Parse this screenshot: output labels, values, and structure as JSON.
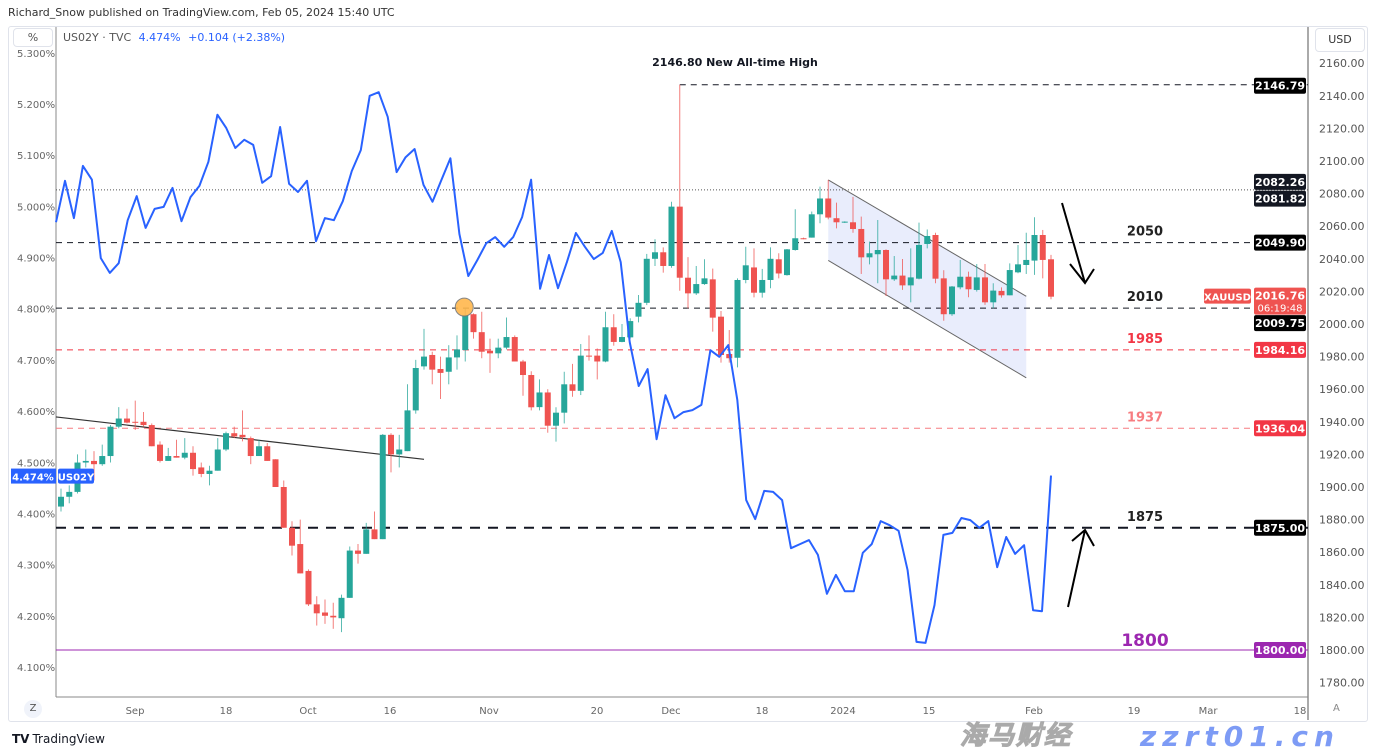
{
  "header": {
    "publisher": "Richard_Snow published on TradingView.com, Feb 05, 2024 15:40 UTC",
    "left_scale_button": "%",
    "right_scale_button": "USD",
    "legend_symbol": "US02Y · TVC",
    "legend_value": "4.474%",
    "legend_change": "+0.104 (+2.38%)"
  },
  "footer": {
    "logo_text": "TradingView",
    "logo_mark": "TV",
    "z_button": "Z",
    "a_button": "A"
  },
  "watermark": {
    "cn": "海马财经",
    "en": "zzrt01.cn"
  },
  "colors": {
    "up": "#26a69a",
    "down": "#ef5350",
    "yield_line": "#2962ff",
    "support_1800": "#9c27b0",
    "red_level": "#f23645",
    "channel_fill": "#e3e8fb"
  },
  "chart_data": {
    "type": "candlestick+line",
    "instrument_right": "XAUUSD",
    "instrument_left": "US02Y",
    "y_right": {
      "unit": "USD",
      "range": [
        1773,
        2180
      ],
      "ticks": [
        2160,
        2140,
        2120,
        2100,
        2080,
        2060,
        2040,
        2020,
        2000,
        1980,
        1960,
        1940,
        1920,
        1900,
        1880,
        1860,
        1840,
        1820,
        1800,
        1780
      ]
    },
    "y_left": {
      "unit": "%",
      "range": [
        4.06,
        5.35
      ],
      "ticks": [
        "5.300%",
        "5.200%",
        "5.100%",
        "5.000%",
        "4.900%",
        "4.800%",
        "4.700%",
        "4.600%",
        "4.500%",
        "4.400%",
        "4.300%",
        "4.200%",
        "4.100%"
      ]
    },
    "x_ticks": [
      "Sep",
      "18",
      "Oct",
      "16",
      "Nov",
      "20",
      "Dec",
      "18",
      "2024",
      "15",
      "Feb",
      "19",
      "Mar",
      "18"
    ],
    "candles_ohlc": [
      [
        1888,
        1899,
        1885,
        1894
      ],
      [
        1894,
        1901,
        1890,
        1897
      ],
      [
        1897,
        1920,
        1896,
        1915
      ],
      [
        1915,
        1923,
        1912,
        1916
      ],
      [
        1916,
        1922,
        1904,
        1914
      ],
      [
        1914,
        1926,
        1913,
        1919
      ],
      [
        1919,
        1938,
        1915,
        1937
      ],
      [
        1937,
        1949,
        1936,
        1942
      ],
      [
        1942,
        1948,
        1939,
        1939.5
      ],
      [
        1940,
        1953,
        1935,
        1939.5
      ],
      [
        1940,
        1946,
        1937,
        1938
      ],
      [
        1938,
        1939,
        1925,
        1925
      ],
      [
        1926,
        1928,
        1915,
        1916
      ],
      [
        1916,
        1924,
        1916,
        1919
      ],
      [
        1919,
        1929,
        1918,
        1918
      ],
      [
        1918,
        1930,
        1917,
        1921
      ],
      [
        1921,
        1925,
        1907,
        1911
      ],
      [
        1912,
        1915,
        1906,
        1908
      ],
      [
        1908,
        1913,
        1901,
        1910
      ],
      [
        1910,
        1930,
        1910,
        1923
      ],
      [
        1923,
        1934,
        1922,
        1933
      ],
      [
        1933,
        1937,
        1930,
        1931
      ],
      [
        1932,
        1947,
        1928,
        1930.5
      ],
      [
        1930,
        1931,
        1914,
        1919
      ],
      [
        1919,
        1929,
        1919,
        1925
      ],
      [
        1925,
        1927,
        1916,
        1916
      ],
      [
        1917,
        1917,
        1900,
        1900
      ],
      [
        1900,
        1904,
        1875,
        1875
      ],
      [
        1875,
        1879,
        1858,
        1864
      ],
      [
        1865,
        1880,
        1847,
        1847
      ],
      [
        1848.5,
        1849.5,
        1827,
        1828
      ],
      [
        1828,
        1833,
        1815,
        1822.5
      ],
      [
        1823,
        1831,
        1816,
        1821
      ],
      [
        1821,
        1829,
        1813,
        1820
      ],
      [
        1819.5,
        1834,
        1811,
        1832
      ],
      [
        1832,
        1863.5,
        1832,
        1861
      ],
      [
        1861,
        1865,
        1853,
        1859
      ],
      [
        1859,
        1878,
        1859,
        1874
      ],
      [
        1874,
        1885,
        1868,
        1868
      ],
      [
        1868,
        1932.5,
        1868,
        1932
      ],
      [
        1932,
        1933,
        1909,
        1920
      ],
      [
        1920,
        1932,
        1912,
        1923
      ],
      [
        1922,
        1963,
        1922,
        1947
      ],
      [
        1947,
        1978,
        1945,
        1973
      ],
      [
        1974,
        1997,
        1972,
        1980
      ],
      [
        1981,
        1983,
        1963,
        1972
      ],
      [
        1972.4,
        1980,
        1954,
        1970
      ],
      [
        1970.7,
        1987,
        1963,
        1979.5
      ],
      [
        1979.5,
        1993,
        1972,
        1984.4
      ],
      [
        1984,
        2009.6,
        1977,
        2005.5
      ],
      [
        2006,
        2006.5,
        1991,
        1995
      ],
      [
        1995,
        2007.5,
        1979,
        1983
      ],
      [
        1983.6,
        1991,
        1970,
        1982
      ],
      [
        1982,
        1991,
        1979,
        1985.5
      ],
      [
        1985.5,
        2004,
        1984.4,
        1992
      ],
      [
        1992,
        1993,
        1977,
        1977
      ],
      [
        1977,
        1978,
        1956,
        1968.7
      ],
      [
        1968.7,
        1971,
        1947,
        1948.9
      ],
      [
        1949,
        1966,
        1947,
        1958
      ],
      [
        1958,
        1960,
        1933.3,
        1937.6
      ],
      [
        1937.6,
        1948.9,
        1927.8,
        1945.6
      ],
      [
        1945.6,
        1970.7,
        1939,
        1963
      ],
      [
        1963,
        1975.5,
        1955.4,
        1959
      ],
      [
        1959,
        1987.7,
        1956.4,
        1980.6
      ],
      [
        1980.6,
        1993,
        1977.5,
        1980
      ],
      [
        1980.6,
        1985,
        1966,
        1977
      ],
      [
        1977,
        2007.5,
        1976.5,
        1998
      ],
      [
        1998,
        2006,
        1986.7,
        1989
      ],
      [
        1989,
        2000,
        1988.8,
        1992
      ],
      [
        1991.8,
        2003.5,
        1991,
        2001.8
      ],
      [
        2004.5,
        2017.8,
        2001,
        2013
      ],
      [
        2013,
        2043,
        2011.6,
        2040
      ],
      [
        2040,
        2052,
        2035.6,
        2044
      ],
      [
        2044,
        2047,
        2031.5,
        2035.6
      ],
      [
        2035.6,
        2075,
        2034.5,
        2072
      ],
      [
        2072,
        2146.79,
        2020.4,
        2028.4
      ],
      [
        2028.4,
        2041,
        2009.6,
        2018.8
      ],
      [
        2018.8,
        2035.6,
        2017.8,
        2024.5
      ],
      [
        2024.5,
        2039.7,
        2024,
        2028
      ],
      [
        2027.4,
        2034,
        1995.3,
        2003.9
      ],
      [
        2004.5,
        2008,
        1976.3,
        1981
      ],
      [
        1981.6,
        1996.3,
        1976.3,
        1979
      ],
      [
        1979.3,
        2028,
        1973.4,
        2027
      ],
      [
        2027,
        2047.4,
        2025,
        2036
      ],
      [
        2034.7,
        2046.4,
        2016.3,
        2019.2
      ],
      [
        2019.2,
        2033.8,
        2016.2,
        2027
      ],
      [
        2027,
        2047,
        2021.9,
        2040
      ],
      [
        2039.7,
        2043.4,
        2028,
        2031
      ],
      [
        2030,
        2046,
        2029.7,
        2045.8
      ],
      [
        2045.4,
        2070.4,
        2045,
        2052.6
      ],
      [
        2052.6,
        2053,
        2052,
        2052.2
      ],
      [
        2053,
        2069,
        2053,
        2067.3
      ],
      [
        2067.3,
        2084.3,
        2061.8,
        2077
      ],
      [
        2077,
        2088.4,
        2064.2,
        2065.3
      ],
      [
        2064.9,
        2074.5,
        2058.7,
        2062.4
      ],
      [
        2062.4,
        2063,
        2062,
        2062.8
      ],
      [
        2062.4,
        2078,
        2056,
        2058.3
      ],
      [
        2058.3,
        2065.9,
        2030.7,
        2040.9
      ],
      [
        2040.9,
        2050.5,
        2036.6,
        2043.4
      ],
      [
        2042.8,
        2063.8,
        2025,
        2045.4
      ],
      [
        2045.4,
        2045.8,
        2017.2,
        2027.4
      ],
      [
        2027.4,
        2041.7,
        2026.4,
        2029.7
      ],
      [
        2029.7,
        2039.9,
        2020.9,
        2023.7
      ],
      [
        2023.7,
        2046.4,
        2013.3,
        2028.6
      ],
      [
        2027.8,
        2062.2,
        2027.4,
        2048.5
      ],
      [
        2049.1,
        2058,
        2046.4,
        2054
      ],
      [
        2054.6,
        2056,
        2025,
        2027.8
      ],
      [
        2028,
        2033,
        2002,
        2006
      ],
      [
        2006,
        2023.3,
        2005,
        2023
      ],
      [
        2022.5,
        2039.3,
        2021.3,
        2029
      ],
      [
        2029,
        2032.1,
        2016.4,
        2021.3
      ],
      [
        2020.9,
        2036.8,
        2019.9,
        2028.6
      ],
      [
        2028.6,
        2036.8,
        2011.7,
        2013.3
      ],
      [
        2013.3,
        2025,
        2009.6,
        2020.5
      ],
      [
        2020.3,
        2022.5,
        2016.2,
        2017.6
      ],
      [
        2017.6,
        2037.2,
        2017.6,
        2033.1
      ],
      [
        2031.7,
        2048.5,
        2031.1,
        2036.6
      ],
      [
        2036.2,
        2056,
        2030.7,
        2039.3
      ],
      [
        2038.9,
        2065.5,
        2030.1,
        2054.6
      ],
      [
        2054.6,
        2057.7,
        2028,
        2039.3
      ],
      [
        2039.7,
        2042.4,
        2015.2,
        2016.76
      ]
    ],
    "us02y_pct": [
      4.969,
      5.05,
      4.977,
      5.079,
      5.052,
      4.899,
      4.87,
      4.889,
      4.973,
      5.02,
      4.958,
      4.995,
      4.999,
      5.036,
      4.971,
      5.018,
      5.04,
      5.087,
      5.179,
      5.153,
      5.114,
      5.13,
      5.12,
      5.046,
      5.059,
      5.155,
      5.044,
      5.028,
      5.05,
      4.932,
      4.977,
      4.973,
      5.01,
      5.069,
      5.11,
      5.216,
      5.223,
      5.175,
      5.067,
      5.096,
      5.112,
      5.042,
      5.009,
      5.052,
      5.094,
      4.946,
      4.864,
      4.895,
      4.928,
      4.94,
      4.921,
      4.94,
      4.979,
      5.052,
      4.839,
      4.905,
      4.84,
      4.891,
      4.948,
      4.921,
      4.897,
      4.909,
      4.952,
      4.891,
      4.735,
      4.649,
      4.682,
      4.545,
      4.631,
      4.586,
      4.598,
      4.602,
      4.612,
      4.719,
      4.706,
      4.729,
      4.622,
      4.426,
      4.389,
      4.444,
      4.442,
      4.426,
      4.332,
      4.34,
      4.348,
      4.319,
      4.243,
      4.28,
      4.248,
      4.248,
      4.323,
      4.34,
      4.385,
      4.377,
      4.366,
      4.289,
      4.149,
      4.147,
      4.221,
      4.358,
      4.362,
      4.391,
      4.387,
      4.372,
      4.385,
      4.295,
      4.354,
      4.321,
      4.338,
      4.211,
      4.209,
      4.474
    ],
    "levels": [
      {
        "price": 2146.79,
        "badge": "2146.79",
        "style": "dashed",
        "color": "#131722",
        "from_candle": 76
      },
      {
        "price": 2082.26,
        "badge": "2082.26",
        "style": "dotted",
        "color": "#555555"
      },
      {
        "price": 2081.82,
        "badge": "2081.82",
        "style": "none",
        "color": "#131722"
      },
      {
        "price": 2049.9,
        "badge": "2049.90",
        "label": "2050",
        "style": "dashed",
        "color": "#131722"
      },
      {
        "price": 2009.75,
        "badge": "2009.75",
        "label": "2010",
        "style": "dashed",
        "color": "#131722"
      },
      {
        "price": 1984.16,
        "badge": "1984.16",
        "label": "1985",
        "style": "dashed",
        "color": "#f23645"
      },
      {
        "price": 1936.04,
        "badge": "1936.04",
        "label": "1937",
        "style": "dashed",
        "color": "#f77c80"
      },
      {
        "price": 1875.0,
        "badge": "1875.00",
        "label": "1875",
        "style": "thickdashed",
        "color": "#131722"
      },
      {
        "price": 1800.0,
        "badge": "1800.00",
        "label": "1800",
        "style": "solid",
        "color": "#9c27b0"
      }
    ],
    "last_price": {
      "symbol": "XAUUSD",
      "price": "2016.76",
      "countdown": "06:19:48"
    },
    "last_yield_badge": {
      "value": "4.474%",
      "symbol": "US02Y"
    },
    "annotation_ath": "2146.80 New All-time High",
    "trendline": {
      "from": [
        1,
        1943
      ],
      "to": [
        44,
        1917
      ]
    },
    "channel": {
      "upper": [
        [
          94,
          2088.4
        ],
        [
          118,
          2017
        ]
      ],
      "lower": [
        [
          94,
          2039
        ],
        [
          118,
          1967
        ]
      ]
    },
    "arrows": [
      {
        "direction": "down"
      },
      {
        "direction": "up"
      }
    ],
    "marker": {
      "candle": 50,
      "price": 2009.75
    }
  }
}
